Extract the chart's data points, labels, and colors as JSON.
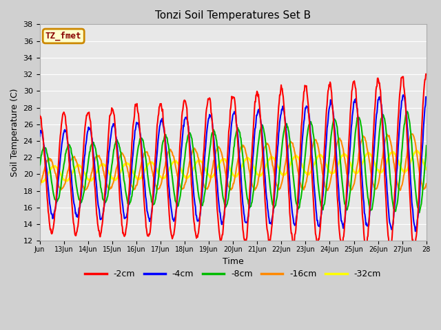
{
  "title": "Tonzi Soil Temperatures Set B",
  "xlabel": "Time",
  "ylabel": "Soil Temperature (C)",
  "ylim": [
    12,
    38
  ],
  "yticks": [
    12,
    14,
    16,
    18,
    20,
    22,
    24,
    26,
    28,
    30,
    32,
    34,
    36,
    38
  ],
  "fig_bg_color": "#d0d0d0",
  "axes_bg_color": "#e8e8e8",
  "annotation_text": "TZ_fmet",
  "annotation_bg": "#ffffcc",
  "annotation_border": "#cc8800",
  "annotation_text_color": "#880000",
  "series_colors": {
    "-2cm": "#ff0000",
    "-4cm": "#0000ff",
    "-8cm": "#00bb00",
    "-16cm": "#ff8800",
    "-32cm": "#ffff00"
  },
  "series_lw": {
    "-2cm": 1.5,
    "-4cm": 1.5,
    "-8cm": 1.5,
    "-16cm": 1.5,
    "-32cm": 2.0
  },
  "x_tick_labels": [
    "Jun",
    "13Jun",
    "14Jun",
    "15Jun",
    "16Jun",
    "17Jun",
    "18Jun",
    "19Jun",
    "20Jun",
    "21Jun",
    "22Jun",
    "23Jun",
    "24Jun",
    "25Jun",
    "26Jun",
    "27Jun",
    "28"
  ],
  "title_fontsize": 11,
  "axis_label_fontsize": 9,
  "tick_fontsize": 8,
  "legend_fontsize": 9
}
